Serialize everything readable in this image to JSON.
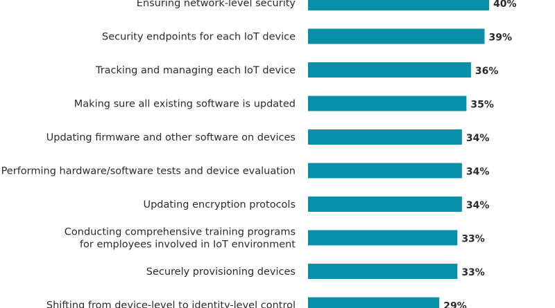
{
  "colors": {
    "bar": "#0a8fa8",
    "text": "#2b2b2b",
    "background": "#ffffff"
  },
  "chart_data": {
    "type": "bar",
    "orientation": "horizontal",
    "title": "",
    "xlabel": "",
    "ylabel": "",
    "xlim": [
      0,
      40
    ],
    "grid": false,
    "legend": "none",
    "categories": [
      [
        "Ensuring network-level security"
      ],
      [
        "Security endpoints for each IoT device"
      ],
      [
        "Tracking and managing each IoT device"
      ],
      [
        "Making sure all existing software is updated"
      ],
      [
        "Updating firmware and other software on devices"
      ],
      [
        "Performing hardware/software tests and device evaluation"
      ],
      [
        "Updating encryption protocols"
      ],
      [
        "Conducting comprehensive training programs",
        "for employees involved in IoT environment"
      ],
      [
        "Securely provisioning devices"
      ],
      [
        "Shifting from device-level to identity-level control"
      ]
    ],
    "values": [
      40,
      39,
      36,
      35,
      34,
      34,
      34,
      33,
      33,
      29
    ],
    "value_labels": [
      "40%",
      "39%",
      "36%",
      "35%",
      "34%",
      "34%",
      "34%",
      "33%",
      "33%",
      "29%"
    ]
  }
}
